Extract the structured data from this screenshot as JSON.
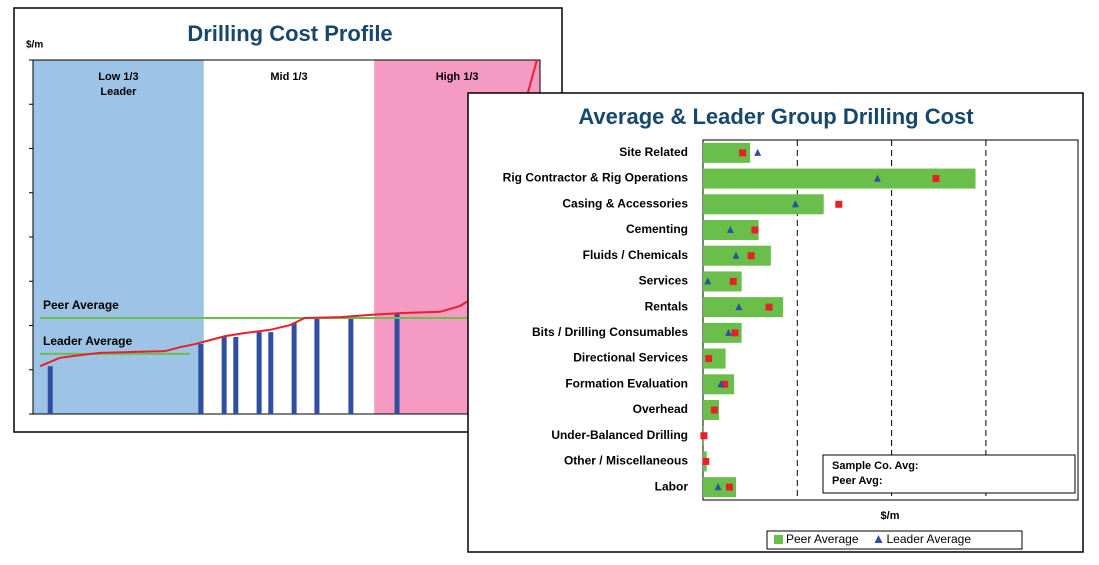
{
  "chart_data": [
    {
      "type": "profile",
      "title": "Drilling Cost Profile",
      "ylabel": "$/m",
      "xlim": [
        0,
        100
      ],
      "ylim": [
        0,
        8
      ],
      "yticks": [
        0,
        1,
        2,
        3,
        4,
        5,
        6,
        7,
        8
      ],
      "zones": [
        {
          "label": [
            "Low 1/3",
            "Leader"
          ],
          "color": "#9dc3e6",
          "range": [
            0,
            33.7
          ]
        },
        {
          "label": [
            "Mid 1/3"
          ],
          "color": "#ffffff",
          "range": [
            33.7,
            67.3
          ]
        },
        {
          "label": [
            "High 1/3"
          ],
          "color": "#f59ac2",
          "range": [
            67.3,
            100
          ]
        }
      ],
      "bars": {
        "color": "#2e4fa2",
        "x": [
          3.4,
          33.1,
          37.7,
          40,
          44.6,
          46.9,
          51.5,
          56,
          62.7,
          71.8
        ],
        "values": [
          1.08,
          1.58,
          1.74,
          1.74,
          1.85,
          1.85,
          2.06,
          2.17,
          2.17,
          2.26
        ]
      },
      "curve": {
        "color": "#e8202a",
        "x": [
          1.4,
          5.3,
          9.3,
          13.2,
          19.1,
          26.0,
          29.0,
          32.0,
          34.9,
          37.9,
          41.8,
          46.7,
          50.7,
          53.6,
          60.6,
          66.5,
          72.4,
          80.3,
          84.2,
          86.2,
          99.4
        ],
        "values": [
          1.08,
          1.27,
          1.33,
          1.38,
          1.4,
          1.42,
          1.51,
          1.58,
          1.67,
          1.76,
          1.83,
          1.9,
          2.01,
          2.17,
          2.19,
          2.24,
          2.28,
          2.31,
          2.44,
          2.58,
          8.0
        ]
      },
      "references": [
        {
          "label": "Peer Average",
          "value": 2.17,
          "color": "#6abf4b",
          "span": [
            1.4,
            100
          ]
        },
        {
          "label": "Leader Average",
          "value": 1.36,
          "color": "#6abf4b",
          "span": [
            1.4,
            31.0
          ]
        }
      ]
    },
    {
      "type": "hbar",
      "title": "Average & Leader Group Drilling Cost",
      "xlabel": "$/m",
      "xlim": [
        0,
        4
      ],
      "xticks": [
        0,
        1,
        2,
        3,
        4
      ],
      "grid": true,
      "categories": [
        "Site Related",
        "Rig Contractor & Rig Operations",
        "Casing & Accessories",
        "Cementing",
        "Fluids / Chemicals",
        "Services",
        "Rentals",
        "Bits / Drilling Consumables",
        "Directional Services",
        "Formation Evaluation",
        "Overhead",
        "Under-Balanced Drilling",
        "Other / Miscellaneous",
        "Labor"
      ],
      "series": [
        {
          "name": "Peer Average",
          "color": "#6abf4b",
          "marker": "bar",
          "values": [
            0.5,
            2.89,
            1.28,
            0.59,
            0.72,
            0.41,
            0.85,
            0.41,
            0.24,
            0.33,
            0.17,
            0.01,
            0.04,
            0.35
          ]
        },
        {
          "color": "#e8202a",
          "marker": "square",
          "values": [
            0.42,
            2.47,
            1.44,
            0.55,
            0.51,
            0.32,
            0.7,
            0.34,
            0.06,
            0.23,
            0.12,
            0.01,
            0.03,
            0.28
          ]
        },
        {
          "name": "Leader Average",
          "color": "#2e4fa2",
          "marker": "triangle",
          "values": [
            0.58,
            1.85,
            0.98,
            0.29,
            0.35,
            0.05,
            0.38,
            0.27,
            null,
            0.19,
            null,
            null,
            null,
            0.16
          ]
        }
      ],
      "textbox": [
        "Sample Co. Avg:",
        "Peer Avg:"
      ]
    }
  ]
}
